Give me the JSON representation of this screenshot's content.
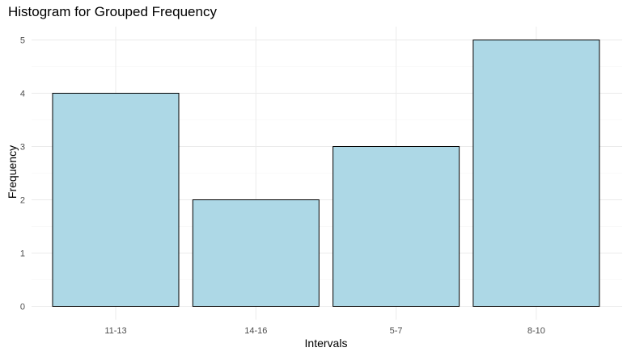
{
  "chart_data": {
    "type": "bar",
    "title": "Histogram for Grouped Frequency",
    "xlabel": "Intervals",
    "ylabel": "Frequency",
    "categories": [
      "11-13",
      "14-16",
      "5-7",
      "8-10"
    ],
    "values": [
      4,
      2,
      3,
      5
    ],
    "ylim": [
      0,
      5
    ],
    "yticks": [
      0,
      1,
      2,
      3,
      4,
      5
    ],
    "grid": true,
    "legend": "none",
    "colors": {
      "bar_fill": "#ADD8E6",
      "bar_stroke": "#000000",
      "grid_major": "#EBEBEB",
      "grid_minor": "#F3F3F3",
      "tick_text": "#4D4D4D"
    }
  }
}
